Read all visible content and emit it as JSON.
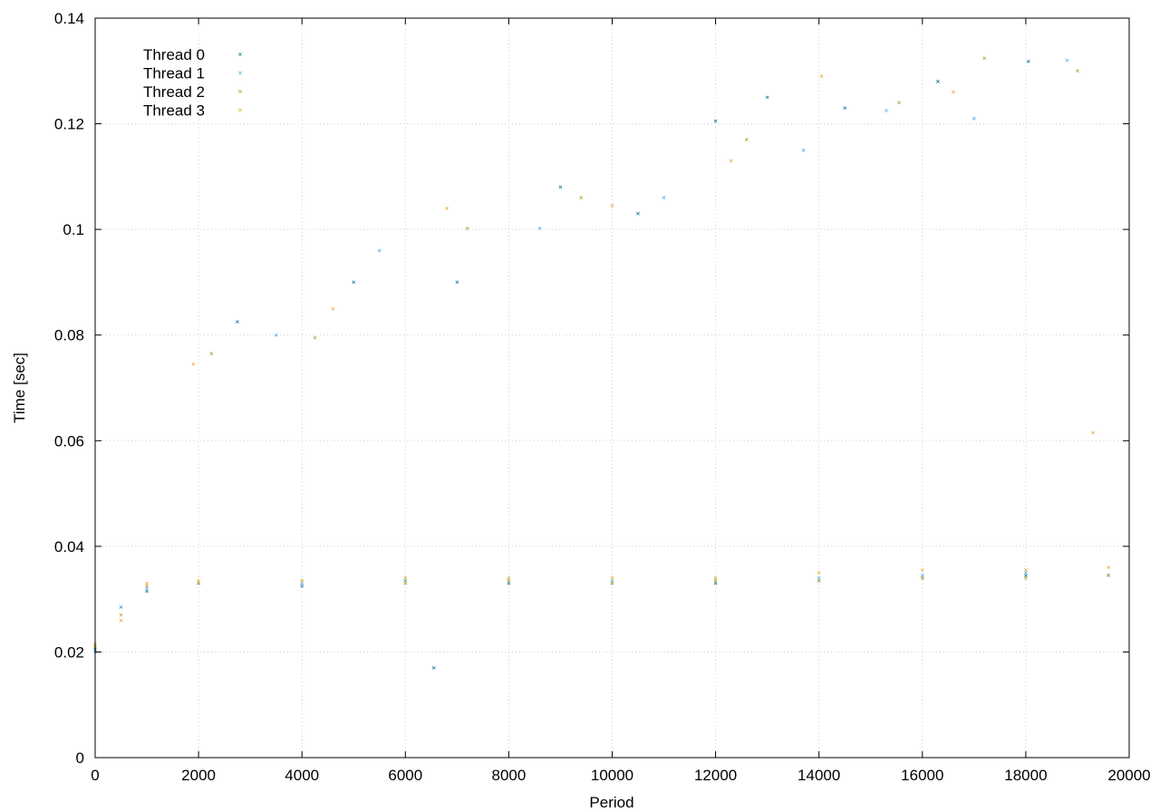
{
  "chart_data": {
    "type": "scatter",
    "title": "",
    "xlabel": "Period",
    "ylabel": "Time [sec]",
    "xlim": [
      0,
      20000
    ],
    "ylim": [
      0,
      0.14
    ],
    "xticks": [
      "0",
      "2000",
      "4000",
      "6000",
      "8000",
      "10000",
      "12000",
      "14000",
      "16000",
      "18000",
      "20000"
    ],
    "yticks": [
      "0",
      "0.02",
      "0.04",
      "0.06",
      "0.08",
      "0.1",
      "0.12",
      "0.14"
    ],
    "grid": true,
    "legend_position": "top-left",
    "series": [
      {
        "name": "Thread 0",
        "color": "#1a7a99",
        "points": [
          [
            0,
            0.0205
          ],
          [
            500,
            0.0285
          ],
          [
            1000,
            0.0315
          ],
          [
            2000,
            0.033
          ],
          [
            4000,
            0.0325
          ],
          [
            6000,
            0.0335
          ],
          [
            8000,
            0.033
          ],
          [
            10000,
            0.033
          ],
          [
            12000,
            0.033
          ],
          [
            14000,
            0.0335
          ],
          [
            16000,
            0.034
          ],
          [
            18000,
            0.0345
          ],
          [
            19600,
            0.0345
          ],
          [
            2750,
            0.0825
          ],
          [
            5000,
            0.09
          ],
          [
            7000,
            0.09
          ],
          [
            9000,
            0.108
          ],
          [
            10500,
            0.103
          ],
          [
            12000,
            0.1205
          ],
          [
            13000,
            0.125
          ],
          [
            14500,
            0.123
          ],
          [
            16300,
            0.128
          ],
          [
            18050,
            0.1318
          ],
          [
            6550,
            0.017
          ]
        ]
      },
      {
        "name": "Thread 1",
        "color": "#56b4e9",
        "points": [
          [
            0,
            0.02
          ],
          [
            500,
            0.0285
          ],
          [
            1000,
            0.032
          ],
          [
            2000,
            0.033
          ],
          [
            4000,
            0.033
          ],
          [
            6000,
            0.0335
          ],
          [
            8000,
            0.0335
          ],
          [
            10000,
            0.0335
          ],
          [
            12000,
            0.0335
          ],
          [
            14000,
            0.034
          ],
          [
            16000,
            0.0345
          ],
          [
            18000,
            0.035
          ],
          [
            19600,
            0.0345
          ],
          [
            3500,
            0.08
          ],
          [
            5500,
            0.096
          ],
          [
            8600,
            0.1002
          ],
          [
            11000,
            0.106
          ],
          [
            15300,
            0.1225
          ],
          [
            17000,
            0.121
          ],
          [
            18800,
            0.132
          ],
          [
            13700,
            0.115
          ]
        ]
      },
      {
        "name": "Thread 2",
        "color": "#b8a032",
        "points": [
          [
            0,
            0.021
          ],
          [
            500,
            0.027
          ],
          [
            1000,
            0.0325
          ],
          [
            2000,
            0.033
          ],
          [
            4000,
            0.0335
          ],
          [
            6000,
            0.033
          ],
          [
            8000,
            0.0335
          ],
          [
            10000,
            0.033
          ],
          [
            12000,
            0.0335
          ],
          [
            14000,
            0.0335
          ],
          [
            16000,
            0.034
          ],
          [
            18000,
            0.034
          ],
          [
            19600,
            0.0345
          ],
          [
            2250,
            0.0765
          ],
          [
            4250,
            0.0795
          ],
          [
            7200,
            0.1002
          ],
          [
            9400,
            0.106
          ],
          [
            12600,
            0.117
          ],
          [
            15550,
            0.124
          ],
          [
            19000,
            0.13
          ],
          [
            17200,
            0.1324
          ]
        ]
      },
      {
        "name": "Thread 3",
        "color": "#e8b03a",
        "points": [
          [
            0,
            0.0215
          ],
          [
            500,
            0.026
          ],
          [
            1000,
            0.033
          ],
          [
            2000,
            0.0335
          ],
          [
            4000,
            0.0335
          ],
          [
            6000,
            0.034
          ],
          [
            8000,
            0.034
          ],
          [
            10000,
            0.034
          ],
          [
            12000,
            0.034
          ],
          [
            14000,
            0.035
          ],
          [
            16000,
            0.0355
          ],
          [
            18000,
            0.0355
          ],
          [
            19600,
            0.036
          ],
          [
            1900,
            0.0745
          ],
          [
            4600,
            0.085
          ],
          [
            6800,
            0.104
          ],
          [
            10000,
            0.1045
          ],
          [
            12300,
            0.113
          ],
          [
            14050,
            0.129
          ],
          [
            16600,
            0.126
          ],
          [
            19300,
            0.0615
          ]
        ]
      }
    ]
  }
}
